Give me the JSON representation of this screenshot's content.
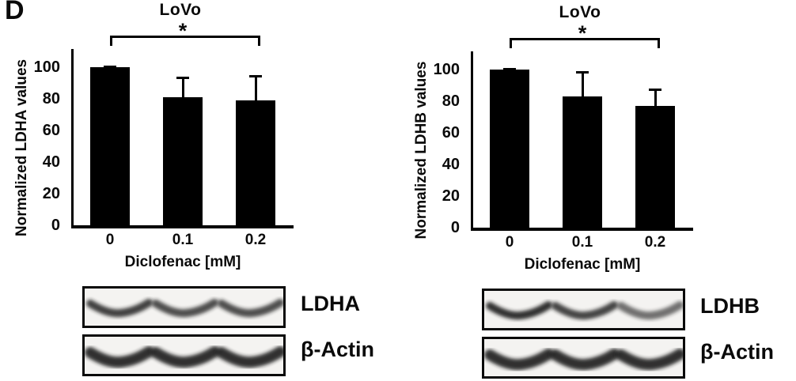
{
  "panel_label": "D",
  "colors": {
    "bar": "#000000",
    "background": "#ffffff",
    "blot_background": "#f4f3f1",
    "band": "#1c1c1c"
  },
  "chart_data": [
    {
      "type": "bar",
      "title": "LoVo",
      "ylabel": "Normalized LDHA values",
      "xlabel": "Diclofenac [mM]",
      "categories": [
        "0",
        "0.1",
        "0.2"
      ],
      "values": [
        100,
        81,
        79
      ],
      "errors_plus": [
        1,
        13,
        16
      ],
      "yticks": [
        100,
        80,
        60,
        40,
        20,
        0
      ],
      "ylim": [
        0,
        111
      ],
      "grid": "off",
      "legend": "none",
      "bar_color": "#000000",
      "significance": {
        "label": "*",
        "from_category": "0",
        "to_category": "0.2"
      }
    },
    {
      "type": "bar",
      "title": "LoVo",
      "ylabel": "Normalized LDHB values",
      "xlabel": "Diclofenac [mM]",
      "categories": [
        "0",
        "0.1",
        "0.2"
      ],
      "values": [
        100,
        83,
        77
      ],
      "errors_plus": [
        1,
        16,
        11
      ],
      "yticks": [
        100,
        80,
        60,
        40,
        20,
        0
      ],
      "ylim": [
        0,
        111
      ],
      "grid": "off",
      "legend": "none",
      "bar_color": "#000000",
      "significance": {
        "label": "*",
        "from_category": "0",
        "to_category": "0.2"
      }
    }
  ],
  "blot_panels": [
    {
      "rows": [
        {
          "label": "LDHA",
          "lanes": 3,
          "band_intensities": [
            0.92,
            0.85,
            0.85
          ]
        },
        {
          "label": "β-Actin",
          "lanes": 3,
          "band_intensities": [
            1.0,
            1.0,
            1.0
          ]
        }
      ]
    },
    {
      "rows": [
        {
          "label": "LDHB",
          "lanes": 3,
          "band_intensities": [
            1.0,
            0.9,
            0.68
          ]
        },
        {
          "label": "β-Actin",
          "lanes": 3,
          "band_intensities": [
            1.0,
            1.0,
            1.0
          ]
        }
      ]
    }
  ]
}
